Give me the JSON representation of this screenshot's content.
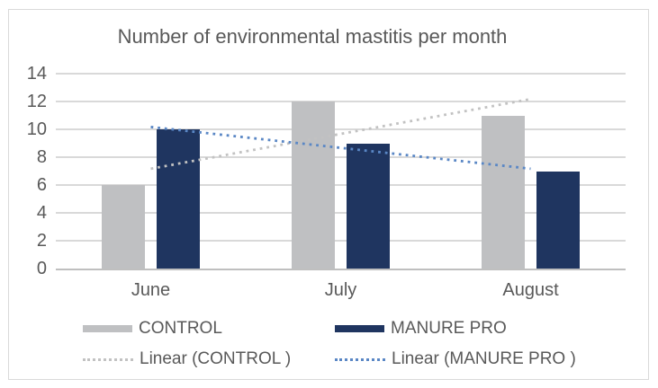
{
  "title": "Number of environmental mastitis per month",
  "colors": {
    "control": "#bfc0c2",
    "manure_pro": "#1f3560",
    "trend_control": "#c2c2c2",
    "trend_manure_pro": "#5a87c5",
    "gridline": "#d9d9d9",
    "axis_line": "#bfbfbf",
    "label_text": "#595959",
    "frame_border": "#d9d9d9"
  },
  "chart_data": {
    "type": "bar",
    "title": "Number of environmental mastitis per month",
    "categories": [
      "June",
      "July",
      "August"
    ],
    "series": [
      {
        "name": "CONTROL",
        "values": [
          6,
          12,
          11
        ],
        "color_key": "control"
      },
      {
        "name": "MANURE PRO",
        "values": [
          10,
          9,
          7
        ],
        "color_key": "manure_pro"
      }
    ],
    "trendlines": [
      {
        "name": "Linear (CONTROL )",
        "start_value": 7.17,
        "end_value": 12.17,
        "color_key": "trend_control"
      },
      {
        "name": "Linear (MANURE PRO )",
        "start_value": 10.17,
        "end_value": 7.17,
        "color_key": "trend_manure_pro"
      }
    ],
    "y_ticks": [
      0,
      2,
      4,
      6,
      8,
      10,
      12,
      14
    ],
    "ylim": [
      0,
      14
    ],
    "xlabel": "",
    "ylabel": "",
    "grid": true,
    "legend_position": "bottom"
  },
  "legend": {
    "items": [
      {
        "label": "CONTROL",
        "type": "bar",
        "color_key": "control"
      },
      {
        "label": "MANURE PRO",
        "type": "bar",
        "color_key": "manure_pro"
      },
      {
        "label": "Linear (CONTROL )",
        "type": "dotted",
        "color_key": "trend_control"
      },
      {
        "label": "Linear (MANURE PRO )",
        "type": "dotted",
        "color_key": "trend_manure_pro"
      }
    ]
  }
}
